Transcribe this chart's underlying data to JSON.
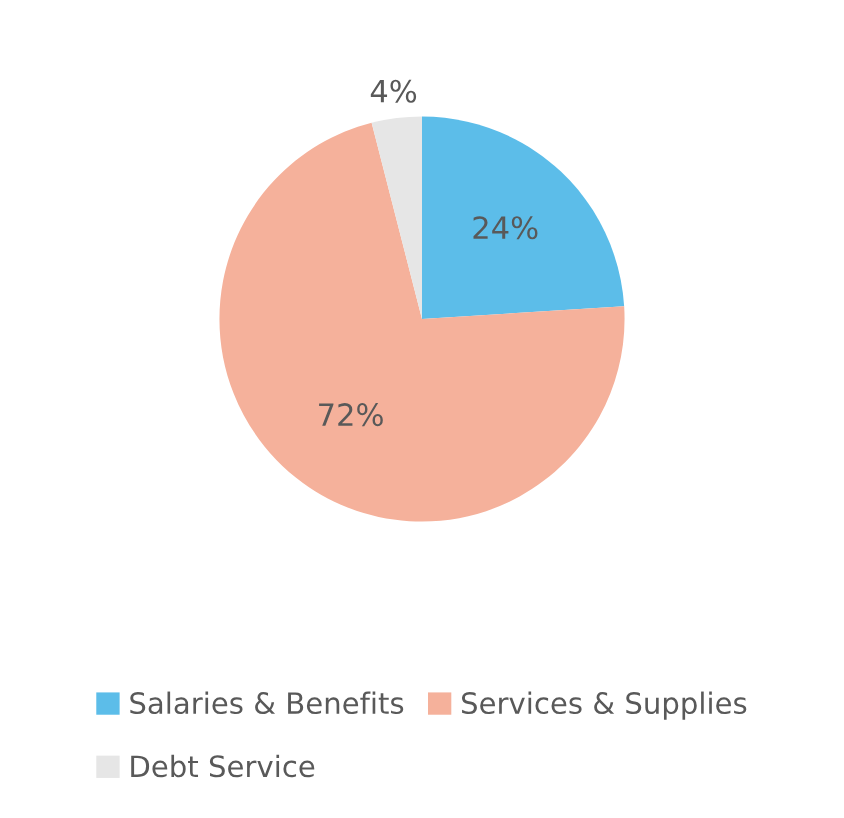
{
  "chart_data": {
    "type": "pie",
    "categories": [
      "Salaries & Benefits",
      "Services & Supplies",
      "Debt Service"
    ],
    "values": [
      24,
      72,
      4
    ],
    "colors": [
      "#5cbde9",
      "#f5b19b",
      "#e6e6e6"
    ],
    "value_labels": [
      "24%",
      "72%",
      "4%"
    ],
    "legend": "bottom"
  }
}
